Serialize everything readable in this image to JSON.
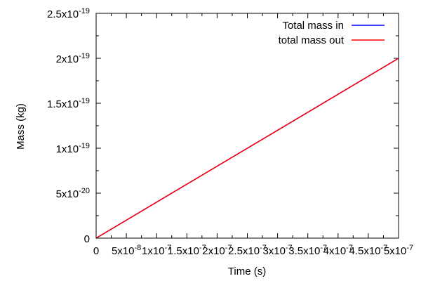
{
  "chart_data": {
    "type": "line",
    "title": "",
    "xlabel": "Time (s)",
    "ylabel": "Mass (kg)",
    "xlim": [
      0,
      5e-07
    ],
    "ylim": [
      0,
      2.5e-19
    ],
    "grid": false,
    "legend_position": "top-right",
    "x_ticks": [
      {
        "value": 0,
        "base": "0",
        "exp": ""
      },
      {
        "value": 5e-08,
        "base": "5x10",
        "exp": "-8"
      },
      {
        "value": 1e-07,
        "base": "1x10",
        "exp": "-7"
      },
      {
        "value": 1.5e-07,
        "base": "1.5x10",
        "exp": "-7"
      },
      {
        "value": 2e-07,
        "base": "2x10",
        "exp": "-7"
      },
      {
        "value": 2.5e-07,
        "base": "2.5x10",
        "exp": "-7"
      },
      {
        "value": 3e-07,
        "base": "3x10",
        "exp": "-7"
      },
      {
        "value": 3.5e-07,
        "base": "3.5x10",
        "exp": "-7"
      },
      {
        "value": 4e-07,
        "base": "4x10",
        "exp": "-7"
      },
      {
        "value": 4.5e-07,
        "base": "4.5x10",
        "exp": "-7"
      },
      {
        "value": 5e-07,
        "base": "5x10",
        "exp": "-7"
      }
    ],
    "y_ticks": [
      {
        "value": 0,
        "base": "0",
        "exp": ""
      },
      {
        "value": 5e-20,
        "base": "5x10",
        "exp": "-20"
      },
      {
        "value": 1e-19,
        "base": "1x10",
        "exp": "-19"
      },
      {
        "value": 1.5e-19,
        "base": "1.5x10",
        "exp": "-19"
      },
      {
        "value": 2e-19,
        "base": "2x10",
        "exp": "-19"
      },
      {
        "value": 2.5e-19,
        "base": "2.5x10",
        "exp": "-19"
      }
    ],
    "series": [
      {
        "name": "Total mass in",
        "color": "#0000ff",
        "x": [
          0,
          5e-07
        ],
        "y": [
          0,
          2e-19
        ]
      },
      {
        "name": "total mass out",
        "color": "#ff0000",
        "x": [
          0,
          5e-07
        ],
        "y": [
          0,
          2e-19
        ]
      }
    ]
  }
}
